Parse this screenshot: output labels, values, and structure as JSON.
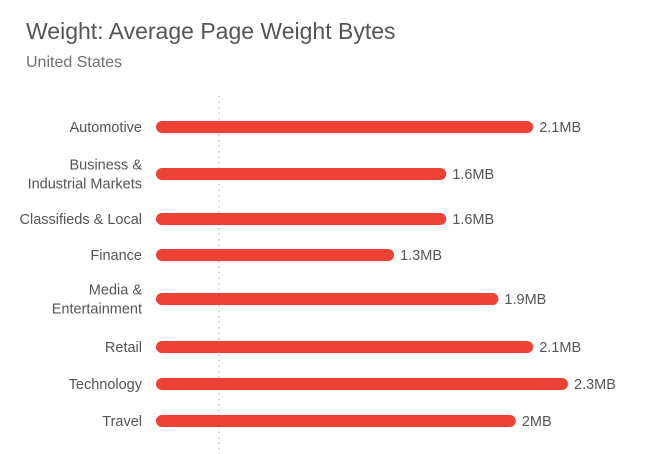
{
  "chart_data": {
    "type": "bar",
    "orientation": "horizontal",
    "title": "Weight: Average Page Weight Bytes",
    "subtitle": "United States",
    "categories": [
      [
        "Automotive"
      ],
      [
        "Business &",
        "Industrial Markets"
      ],
      [
        "Classifieds & Local"
      ],
      [
        "Finance"
      ],
      [
        "Media &",
        "Entertainment"
      ],
      [
        "Retail"
      ],
      [
        "Technology"
      ],
      [
        "Travel"
      ]
    ],
    "values": [
      2.1,
      1.6,
      1.6,
      1.3,
      1.9,
      2.1,
      2.3,
      2.0
    ],
    "value_labels": [
      "2.1MB",
      "1.6MB",
      "1.6MB",
      "1.3MB",
      "1.9MB",
      "2.1MB",
      "2.3MB",
      "2MB"
    ],
    "unit": "MB",
    "xlim": [
      0,
      2.3
    ],
    "grid": false,
    "legend": "none",
    "colors": {
      "bar": "#ee4236",
      "text": "#555555",
      "reference_line": "#c8c8c8"
    }
  }
}
